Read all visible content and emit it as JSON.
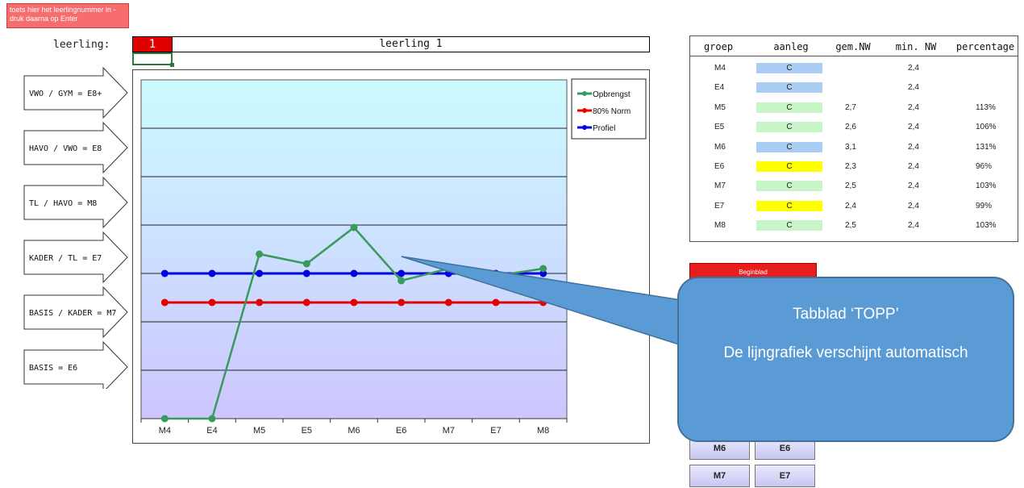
{
  "hint": {
    "text": "toets hier het leerlingnummer in - druk daarna op Enter"
  },
  "student": {
    "label": "leerling:",
    "number": "1",
    "name": "leerling 1"
  },
  "levels": [
    {
      "label": "VWO / GYM = E8+"
    },
    {
      "label": "HAVO / VWO = E8"
    },
    {
      "label": "TL / HAVO = M8"
    },
    {
      "label": "KADER / TL = E7"
    },
    {
      "label": "BASIS / KADER = M7"
    },
    {
      "label": "BASIS = E6"
    }
  ],
  "table": {
    "headers": [
      "groep",
      "aanleg",
      "gem.NW",
      "min. NW",
      "percentage"
    ],
    "rows": [
      {
        "groep": "M4",
        "aanleg": "C",
        "gem": "",
        "min": "2,4",
        "pct": "",
        "color": "#a9cdf3"
      },
      {
        "groep": "E4",
        "aanleg": "C",
        "gem": "",
        "min": "2,4",
        "pct": "",
        "color": "#a9cdf3"
      },
      {
        "groep": "M5",
        "aanleg": "C",
        "gem": "2,7",
        "min": "2,4",
        "pct": "113%",
        "color": "#c8f5c8"
      },
      {
        "groep": "E5",
        "aanleg": "C",
        "gem": "2,6",
        "min": "2,4",
        "pct": "106%",
        "color": "#c8f5c8"
      },
      {
        "groep": "M6",
        "aanleg": "C",
        "gem": "3,1",
        "min": "2,4",
        "pct": "131%",
        "color": "#a9cdf3"
      },
      {
        "groep": "E6",
        "aanleg": "C",
        "gem": "2,3",
        "min": "2,4",
        "pct": "96%",
        "color": "#ffff00"
      },
      {
        "groep": "M7",
        "aanleg": "C",
        "gem": "2,5",
        "min": "2,4",
        "pct": "103%",
        "color": "#c8f5c8"
      },
      {
        "groep": "E7",
        "aanleg": "C",
        "gem": "2,4",
        "min": "2,4",
        "pct": "99%",
        "color": "#ffff00"
      },
      {
        "groep": "M8",
        "aanleg": "C",
        "gem": "2,5",
        "min": "2,4",
        "pct": "103%",
        "color": "#c8f5c8"
      }
    ]
  },
  "red_button": {
    "label": "Beginblad"
  },
  "group_buttons": [
    {
      "label": "M6"
    },
    {
      "label": "E6"
    },
    {
      "label": "M7"
    },
    {
      "label": "E7"
    }
  ],
  "callout": {
    "title": "Tabblad ‘TOPP’",
    "body": "De lijngrafiek verschijnt automatisch"
  },
  "chart_data": {
    "type": "line",
    "categories": [
      "M4",
      "E4",
      "M5",
      "E5",
      "M6",
      "E6",
      "M7",
      "E7",
      "M8"
    ],
    "ylim": [
      0,
      7
    ],
    "gridlines": [
      1,
      2,
      3,
      4,
      5,
      6
    ],
    "legend_position": "top-right",
    "series": [
      {
        "name": "Opbrengst",
        "color": "#3a9a5c",
        "values": [
          0,
          0,
          3.4,
          3.2,
          3.95,
          2.85,
          3.1,
          2.95,
          3.1
        ]
      },
      {
        "name": "80% Norm",
        "color": "#e60000",
        "values": [
          2.4,
          2.4,
          2.4,
          2.4,
          2.4,
          2.4,
          2.4,
          2.4,
          2.4
        ]
      },
      {
        "name": "Profiel",
        "color": "#0000e0",
        "values": [
          3,
          3,
          3,
          3,
          3,
          3,
          3,
          3,
          3
        ]
      }
    ]
  }
}
